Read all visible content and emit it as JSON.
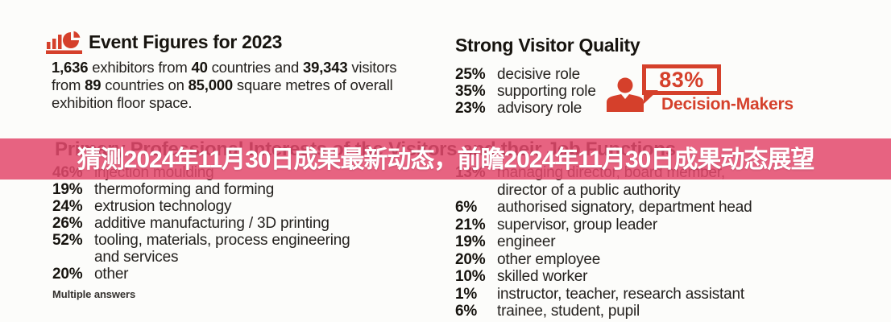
{
  "colors": {
    "accent": "#d5402b",
    "banner_bg": "rgba(227,73,108,0.86)",
    "banner_text": "#ffffff",
    "heading_ink": "#17140f",
    "body_ink": "#25221f"
  },
  "event_figures": {
    "title": "Event Figures for 2023",
    "description_segments": [
      {
        "text": "1,636",
        "bold": true
      },
      {
        "text": " exhibitors from ",
        "bold": false
      },
      {
        "text": "40",
        "bold": true
      },
      {
        "text": " countries and ",
        "bold": false
      },
      {
        "text": "39,343",
        "bold": true
      },
      {
        "text": " visitors\nfrom ",
        "bold": false
      },
      {
        "text": "89",
        "bold": true
      },
      {
        "text": " countries on ",
        "bold": false
      },
      {
        "text": "85,000",
        "bold": true
      },
      {
        "text": " square metres of overall\nexhibition floor space.",
        "bold": false
      }
    ]
  },
  "visitor_quality": {
    "title": "Strong Visitor Quality",
    "items": [
      {
        "percent": "25%",
        "label": "decisive role"
      },
      {
        "percent": "35%",
        "label": "supporting role"
      },
      {
        "percent": "23%",
        "label": "advisory role"
      }
    ],
    "decision_makers": {
      "percent": "83%",
      "label": "Decision-Makers"
    }
  },
  "interests_section": {
    "title": "Primary Professional Interests of the Visitors and their Job Functions",
    "left": {
      "items": [
        {
          "percent": "46%",
          "label": "injection moulding"
        },
        {
          "percent": "19%",
          "label": "thermoforming and forming"
        },
        {
          "percent": "24%",
          "label": "extrusion technology"
        },
        {
          "percent": "26%",
          "label": "additive manufacturing / 3D printing"
        },
        {
          "percent": "52%",
          "label": "tooling, materials, process engineering\nand services"
        },
        {
          "percent": "20%",
          "label": "other"
        }
      ],
      "footnote": "Multiple answers"
    },
    "right": {
      "items": [
        {
          "percent": "13%",
          "label": "managing director, board member,\ndirector of a public authority"
        },
        {
          "percent": "6%",
          "label": "authorised signatory, department head"
        },
        {
          "percent": "21%",
          "label": "supervisor, group leader"
        },
        {
          "percent": "19%",
          "label": "engineer"
        },
        {
          "percent": "20%",
          "label": "other employee"
        },
        {
          "percent": "10%",
          "label": "skilled worker"
        },
        {
          "percent": "1%",
          "label": "instructor, teacher, research assistant"
        },
        {
          "percent": "6%",
          "label": "trainee, student, pupil"
        }
      ]
    }
  },
  "overlay_banner": {
    "text": "猜测2024年11月30日成果最新动态，前瞻2024年11月30日成果动态展望"
  }
}
